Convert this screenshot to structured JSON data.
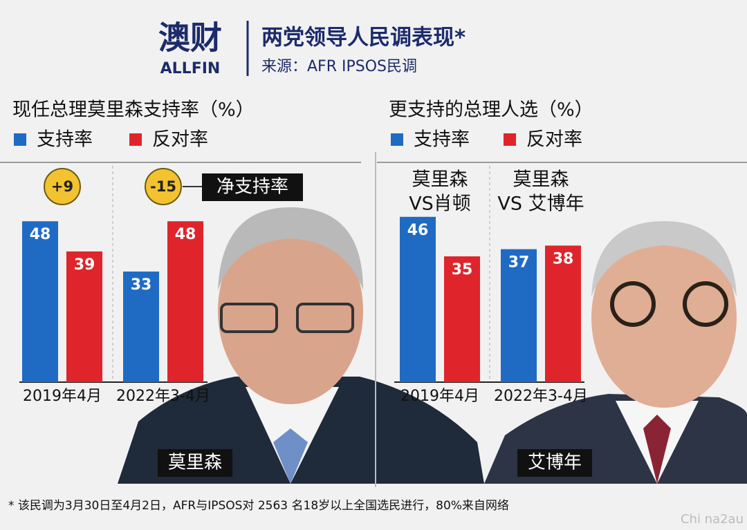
{
  "header": {
    "logo": "澳财",
    "logo_sub": "ALLFIN",
    "title": "两党领导人民调表现*",
    "source": "来源：AFR IPSOS民调"
  },
  "chart_data": [
    {
      "type": "bar",
      "title": "现任总理莫里森支持率（%）",
      "categories": [
        "2019年4月",
        "2022年3-4月"
      ],
      "series": [
        {
          "name": "支持率",
          "color": "#1f6bc4",
          "values": [
            48,
            33
          ]
        },
        {
          "name": "反对率",
          "color": "#e0242b",
          "values": [
            39,
            48
          ]
        }
      ],
      "annotations": [
        "+9",
        "-15"
      ],
      "annotation_title": "净支持率"
    },
    {
      "type": "bar",
      "title": "更支持的总理人选（%）",
      "categories": [
        "2019年4月",
        "2022年3-4月"
      ],
      "group_labels": [
        [
          "莫里森",
          "VS肖顿"
        ],
        [
          "莫里森",
          "VS 艾博年"
        ]
      ],
      "series": [
        {
          "name": "支持率",
          "color": "#1f6bc4",
          "values": [
            46,
            37
          ]
        },
        {
          "name": "反对率",
          "color": "#e0242b",
          "values": [
            35,
            38
          ]
        }
      ]
    }
  ],
  "photo_labels": [
    "莫里森",
    "艾博年"
  ],
  "footnote": "* 该民调为3月30日至4月2日，AFR与IPSOS对 2563 名18岁以上全国选民进行，80%来自网络",
  "watermark": "Chi na2au"
}
